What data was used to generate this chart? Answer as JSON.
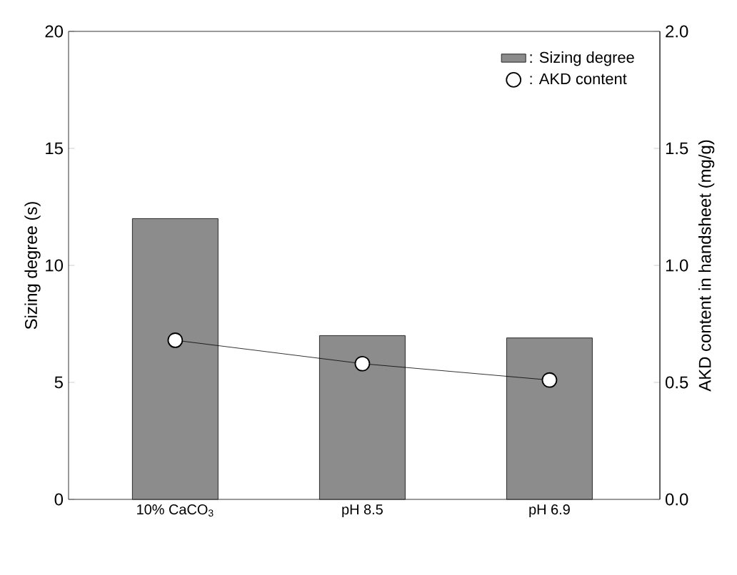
{
  "chart_data": {
    "type": "bar",
    "categories": [
      "10% CaCO$_{3}$",
      "pH 8.5",
      "pH 6.9"
    ],
    "ylabel": "Sizing degree  (s)",
    "y2label": "AKD content in handsheet  (mg/g)",
    "series": [
      {
        "name": ": Sizing degree",
        "color": "#8c8c8c",
        "values": [
          12,
          7,
          6.9
        ]
      },
      {
        "name": ": AKD content",
        "type": "line",
        "axis": "y2",
        "color": "#000000",
        "marker": "circle",
        "values": [
          0.68,
          0.58,
          0.51
        ]
      }
    ],
    "ylim": [
      0,
      20
    ],
    "yticks": [
      0,
      5,
      10,
      15,
      20
    ],
    "y2lim": [
      0,
      2
    ],
    "y2ticks": [
      {
        "value": 0,
        "label": "0.0"
      },
      {
        "value": 0.5,
        "label": "0.5"
      },
      {
        "value": 1,
        "label": "1.0"
      },
      {
        "value": 1.5,
        "label": "1.5"
      },
      {
        "value": 2,
        "label": "2.0"
      }
    ],
    "legend": "top right",
    "grid": false
  }
}
